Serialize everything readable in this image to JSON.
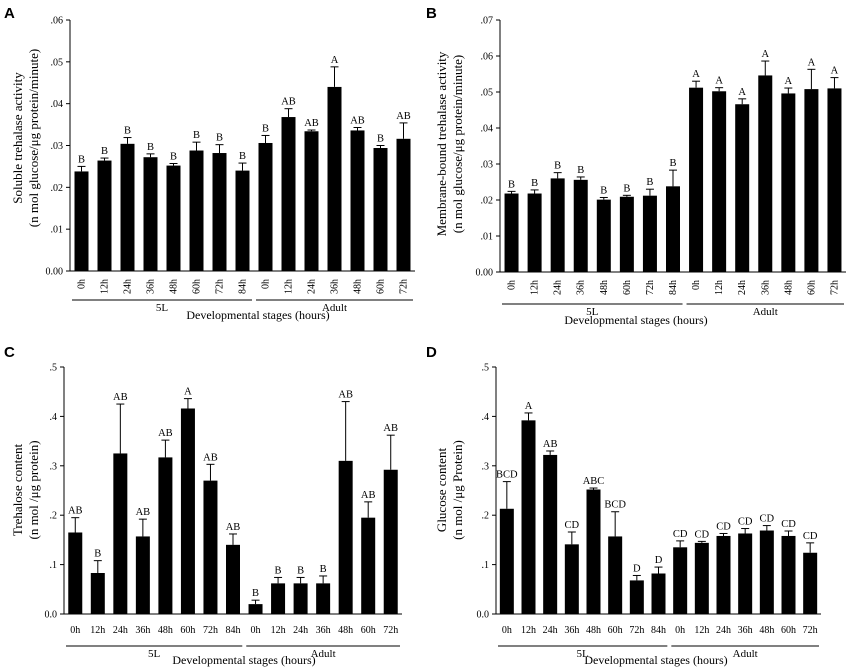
{
  "chart_data": [
    {
      "panel": "A",
      "type": "bar",
      "title": "",
      "ylabel_line1": "Soluble trehalase activity",
      "ylabel_line2": "(n mol glucose/μg protein/minute)",
      "xlabel": "Developmental stages (hours)",
      "ylim": [
        0,
        0.06
      ],
      "yticks": [
        {
          "value": 0,
          "label": "0.00"
        },
        {
          "value": 0.01,
          "label": ".01"
        },
        {
          "value": 0.02,
          "label": ".02"
        },
        {
          "value": 0.03,
          "label": ".03"
        },
        {
          "value": 0.04,
          "label": ".04"
        },
        {
          "value": 0.05,
          "label": ".05"
        },
        {
          "value": 0.06,
          "label": ".06"
        }
      ],
      "categories": [
        "0h",
        "12h",
        "24h",
        "36h",
        "48h",
        "60h",
        "72h",
        "84h",
        "0h",
        "12h",
        "24h",
        "36h",
        "48h",
        "60h",
        "72h"
      ],
      "values": [
        0.0238,
        0.0264,
        0.0304,
        0.0272,
        0.0252,
        0.0288,
        0.0282,
        0.024,
        0.0306,
        0.0368,
        0.0334,
        0.044,
        0.0336,
        0.0294,
        0.0316
      ],
      "errors": [
        0.0012,
        0.0006,
        0.0015,
        0.0008,
        0.0005,
        0.002,
        0.002,
        0.0018,
        0.0018,
        0.002,
        0.0003,
        0.0048,
        0.0007,
        0.0006,
        0.0038
      ],
      "letters": [
        "B",
        "B",
        "B",
        "B",
        "B",
        "B",
        "B",
        "B",
        "B",
        "AB",
        "AB",
        "A",
        "AB",
        "B",
        "AB"
      ],
      "groups": [
        {
          "label": "5L",
          "from": 0,
          "to": 7
        },
        {
          "label": "Adult",
          "from": 8,
          "to": 14
        }
      ]
    },
    {
      "panel": "B",
      "type": "bar",
      "title": "",
      "ylabel_line1": "Membrane-bound trehalase activity",
      "ylabel_line2": "(n mol glucose/μg protein/minute)",
      "xlabel": "Developmental stages (hours)",
      "ylim": [
        0,
        0.07
      ],
      "yticks": [
        {
          "value": 0,
          "label": "0.00"
        },
        {
          "value": 0.01,
          "label": ".01"
        },
        {
          "value": 0.02,
          "label": ".02"
        },
        {
          "value": 0.03,
          "label": ".03"
        },
        {
          "value": 0.04,
          "label": ".04"
        },
        {
          "value": 0.05,
          "label": ".05"
        },
        {
          "value": 0.06,
          "label": ".06"
        },
        {
          "value": 0.07,
          "label": ".07"
        }
      ],
      "categories": [
        "0h",
        "12h",
        "24h",
        "36h",
        "48h",
        "60h",
        "72h",
        "84h",
        "0h",
        "12h",
        "24h",
        "36h",
        "48h",
        "60h",
        "72h"
      ],
      "values": [
        0.0218,
        0.0218,
        0.026,
        0.0256,
        0.0201,
        0.0209,
        0.0212,
        0.0238,
        0.0512,
        0.0502,
        0.0466,
        0.0546,
        0.0496,
        0.0508,
        0.051
      ],
      "errors": [
        0.0006,
        0.001,
        0.0016,
        0.0008,
        0.0006,
        0.0004,
        0.0018,
        0.0045,
        0.0018,
        0.001,
        0.0015,
        0.004,
        0.0015,
        0.0055,
        0.003
      ],
      "letters": [
        "B",
        "B",
        "B",
        "B",
        "B",
        "B",
        "B",
        "B",
        "A",
        "A",
        "A",
        "A",
        "A",
        "A",
        "A"
      ],
      "groups": [
        {
          "label": "5L",
          "from": 0,
          "to": 7
        },
        {
          "label": "Adult",
          "from": 8,
          "to": 14
        }
      ]
    },
    {
      "panel": "C",
      "type": "bar",
      "title": "",
      "ylabel_line1": "Trehalose content",
      "ylabel_line2": "(n mol /μg protein)",
      "xlabel": "Developmental stages (hours)",
      "ylim": [
        0,
        0.5
      ],
      "yticks": [
        {
          "value": 0,
          "label": "0.0"
        },
        {
          "value": 0.1,
          "label": ".1"
        },
        {
          "value": 0.2,
          "label": ".2"
        },
        {
          "value": 0.3,
          "label": ".3"
        },
        {
          "value": 0.4,
          "label": ".4"
        },
        {
          "value": 0.5,
          "label": ".5"
        }
      ],
      "categories": [
        "0h",
        "12h",
        "24h",
        "36h",
        "48h",
        "60h",
        "72h",
        "84h",
        "0h",
        "12h",
        "24h",
        "36h",
        "48h",
        "60h",
        "72h"
      ],
      "values": [
        0.165,
        0.083,
        0.325,
        0.157,
        0.317,
        0.416,
        0.27,
        0.14,
        0.02,
        0.062,
        0.062,
        0.062,
        0.31,
        0.195,
        0.292
      ],
      "errors": [
        0.03,
        0.025,
        0.1,
        0.035,
        0.035,
        0.02,
        0.033,
        0.022,
        0.008,
        0.012,
        0.012,
        0.015,
        0.12,
        0.032,
        0.07
      ],
      "letters": [
        "AB",
        "B",
        "AB",
        "AB",
        "AB",
        "A",
        "AB",
        "AB",
        "B",
        "B",
        "B",
        "B",
        "AB",
        "AB",
        "AB"
      ],
      "groups": [
        {
          "label": "5L",
          "from": 0,
          "to": 7
        },
        {
          "label": "Adult",
          "from": 8,
          "to": 14
        }
      ]
    },
    {
      "panel": "D",
      "type": "bar",
      "title": "",
      "ylabel_line1": "Glucose content",
      "ylabel_line2": "(n mol /μg Protein)",
      "xlabel": "Developmental stages (hours)",
      "ylim": [
        0,
        0.5
      ],
      "yticks": [
        {
          "value": 0,
          "label": "0.0"
        },
        {
          "value": 0.1,
          "label": ".1"
        },
        {
          "value": 0.2,
          "label": ".2"
        },
        {
          "value": 0.3,
          "label": ".3"
        },
        {
          "value": 0.4,
          "label": ".4"
        },
        {
          "value": 0.5,
          "label": ".5"
        }
      ],
      "categories": [
        "0h",
        "12h",
        "24h",
        "36h",
        "48h",
        "60h",
        "72h",
        "84h",
        "0h",
        "12h",
        "24h",
        "36h",
        "48h",
        "60h",
        "72h"
      ],
      "values": [
        0.213,
        0.392,
        0.322,
        0.141,
        0.252,
        0.157,
        0.068,
        0.082,
        0.135,
        0.144,
        0.158,
        0.163,
        0.169,
        0.158,
        0.124
      ],
      "errors": [
        0.055,
        0.015,
        0.008,
        0.025,
        0.003,
        0.05,
        0.01,
        0.013,
        0.013,
        0.003,
        0.005,
        0.01,
        0.01,
        0.01,
        0.02
      ],
      "letters": [
        "BCD",
        "A",
        "AB",
        "CD",
        "ABC",
        "BCD",
        "D",
        "D",
        "CD",
        "CD",
        "CD",
        "CD",
        "CD",
        "CD",
        "CD"
      ],
      "groups": [
        {
          "label": "5L",
          "from": 0,
          "to": 7
        },
        {
          "label": "Adult",
          "from": 8,
          "to": 14
        }
      ]
    }
  ]
}
